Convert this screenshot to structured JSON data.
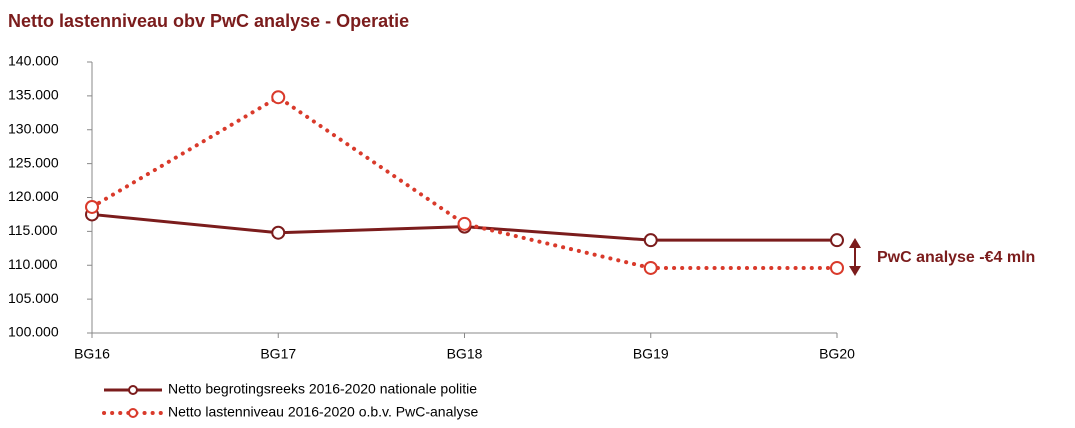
{
  "chart_data": {
    "type": "line",
    "title": "Netto lastenniveau obv PwC analyse - Operatie",
    "categories": [
      "BG16",
      "BG17",
      "BG18",
      "BG19",
      "BG20"
    ],
    "series": [
      {
        "name": "Netto begrotingsreeks 2016-2020 nationale politie",
        "color": "#7b1c1c",
        "style": "solid",
        "values": [
          117500,
          114800,
          115700,
          113700,
          113700
        ]
      },
      {
        "name": "Netto lastenniveau 2016-2020 o.b.v. PwC-analyse",
        "color": "#d93a2b",
        "style": "dotted",
        "values": [
          118600,
          134800,
          116100,
          109600,
          109600
        ]
      }
    ],
    "ylim": [
      100000,
      140000
    ],
    "yticks": [
      {
        "value": 100000,
        "label": "100.000"
      },
      {
        "value": 105000,
        "label": "105.000"
      },
      {
        "value": 110000,
        "label": "110.000"
      },
      {
        "value": 115000,
        "label": "115.000"
      },
      {
        "value": 120000,
        "label": "120.000"
      },
      {
        "value": 125000,
        "label": "125.000"
      },
      {
        "value": 130000,
        "label": "130.000"
      },
      {
        "value": 135000,
        "label": "135.000"
      },
      {
        "value": 140000,
        "label": "140.000"
      }
    ],
    "grid": false,
    "legend": "bottom-left",
    "annotation": "PwC analyse -€4 mln"
  }
}
